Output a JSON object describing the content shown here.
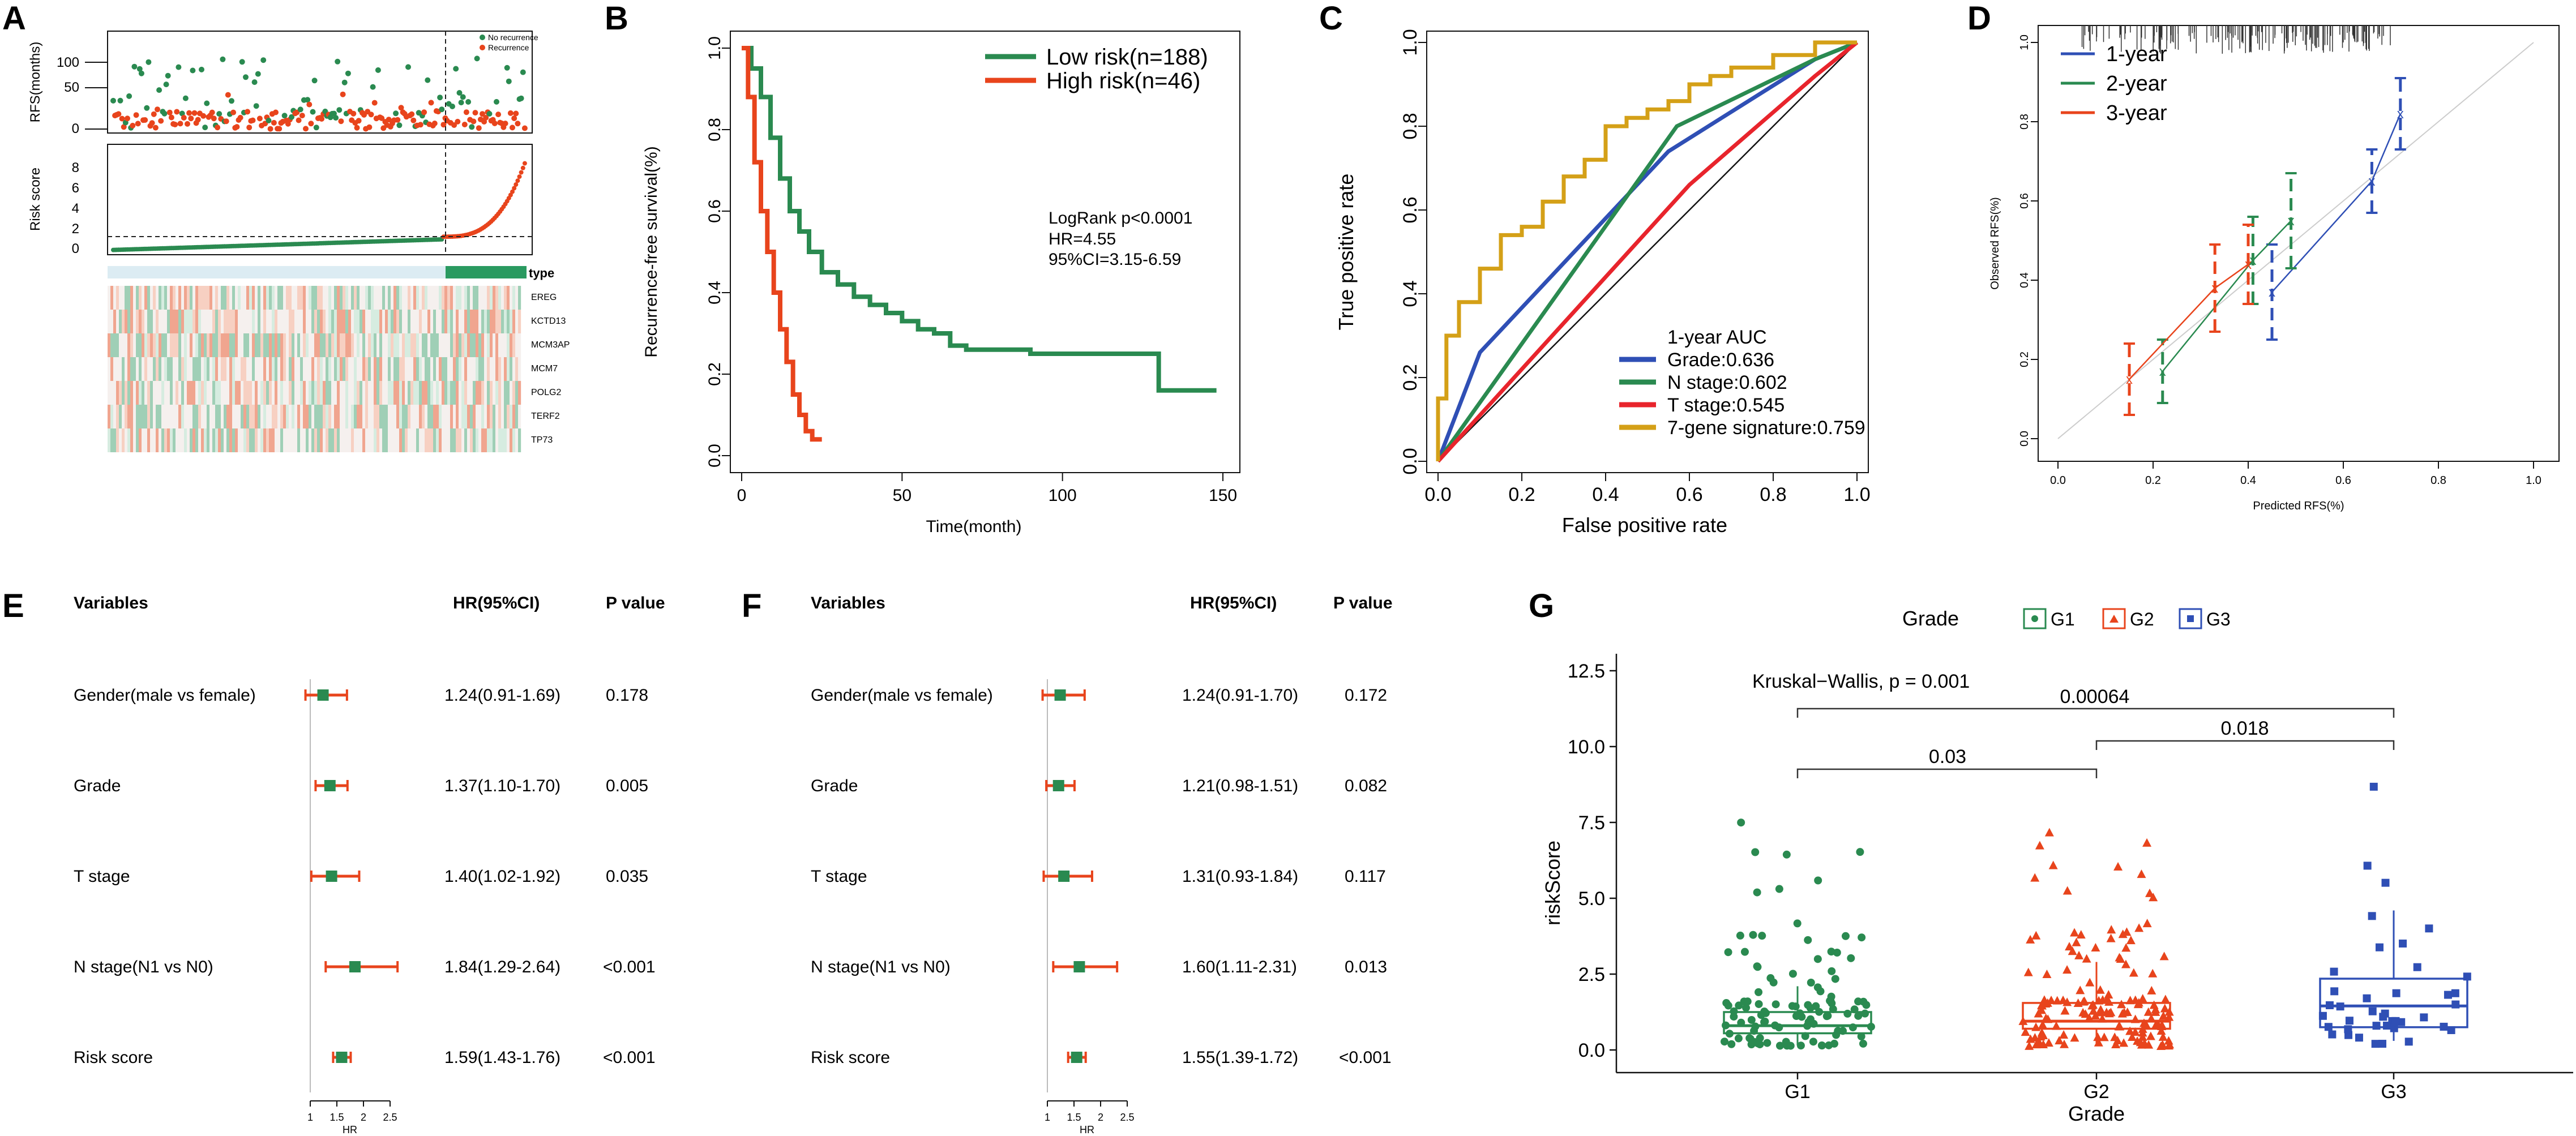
{
  "colors": {
    "green": "#2a8a50",
    "red": "#e8441c",
    "blue": "#2f4fb5",
    "orange": "#d4a017",
    "grey": "#999999",
    "black": "#111111"
  },
  "panels": {
    "A": "A",
    "B": "B",
    "C": "C",
    "D": "D",
    "E": "E",
    "F": "F",
    "G": "G"
  },
  "panelA": {
    "legend": [
      "No recurrence",
      "Recurrence"
    ],
    "top_ylabel": "RFS(months)",
    "top_ticks": [
      0,
      50,
      100
    ],
    "mid_ylabel": "Risk score",
    "mid_ticks": [
      0,
      2,
      4,
      6,
      8
    ],
    "heat_legend": "type",
    "genes": [
      "EREG",
      "KCTD13",
      "MCM3AP",
      "MCM7",
      "POLG2",
      "TERF2",
      "TP73"
    ]
  },
  "chart_data": [
    {
      "panel": "B",
      "type": "line",
      "title": "",
      "xlabel": "Time(month)",
      "ylabel": "Recurrence-free survival(%)",
      "xlim": [
        0,
        150
      ],
      "ylim": [
        0,
        1
      ],
      "x_ticks": [
        0,
        50,
        100,
        150
      ],
      "y_ticks": [
        0.0,
        0.2,
        0.4,
        0.6,
        0.8,
        1.0
      ],
      "legend": [
        "Low risk(n=188)",
        "High risk(n=46)"
      ],
      "annotation": [
        "LogRank p<0.0001",
        "HR=4.55",
        "95%CI=3.15-6.59"
      ],
      "series": [
        {
          "name": "Low risk(n=188)",
          "x": [
            0,
            3,
            6,
            9,
            12,
            15,
            18,
            21,
            25,
            30,
            35,
            40,
            45,
            50,
            55,
            60,
            65,
            70,
            80,
            90,
            100,
            110,
            120,
            130,
            130,
            148
          ],
          "y": [
            1.0,
            0.95,
            0.88,
            0.78,
            0.68,
            0.6,
            0.55,
            0.5,
            0.45,
            0.42,
            0.39,
            0.37,
            0.35,
            0.33,
            0.31,
            0.3,
            0.27,
            0.26,
            0.26,
            0.25,
            0.25,
            0.25,
            0.25,
            0.25,
            0.16,
            0.16
          ]
        },
        {
          "name": "High risk(n=46)",
          "x": [
            0,
            2,
            4,
            6,
            8,
            10,
            12,
            14,
            16,
            18,
            20,
            22,
            25
          ],
          "y": [
            1.0,
            0.88,
            0.72,
            0.6,
            0.5,
            0.4,
            0.31,
            0.23,
            0.15,
            0.1,
            0.06,
            0.04,
            0.04
          ]
        }
      ]
    },
    {
      "panel": "C",
      "type": "line",
      "xlabel": "False positive rate",
      "ylabel": "True positive rate",
      "xlim": [
        0,
        1
      ],
      "ylim": [
        0,
        1
      ],
      "ticks": [
        0.0,
        0.2,
        0.4,
        0.6,
        0.8,
        1.0
      ],
      "legend_title": "1-year AUC",
      "series": [
        {
          "name": "Grade:0.636",
          "x": [
            0,
            0.1,
            0.55,
            0.9,
            1
          ],
          "y": [
            0,
            0.26,
            0.74,
            0.96,
            1
          ]
        },
        {
          "name": "N stage:0.602",
          "x": [
            0,
            0.57,
            0.9,
            1
          ],
          "y": [
            0,
            0.8,
            0.96,
            1
          ]
        },
        {
          "name": "T stage:0.545",
          "x": [
            0,
            0.6,
            0.9,
            1
          ],
          "y": [
            0,
            0.66,
            0.92,
            1
          ]
        },
        {
          "name": "7-gene signature:0.759",
          "x": [
            0,
            0.02,
            0.05,
            0.1,
            0.15,
            0.2,
            0.25,
            0.3,
            0.35,
            0.4,
            0.45,
            0.5,
            0.55,
            0.6,
            0.65,
            0.7,
            0.8,
            0.9,
            1
          ],
          "y": [
            0,
            0.15,
            0.3,
            0.38,
            0.46,
            0.54,
            0.56,
            0.62,
            0.68,
            0.72,
            0.8,
            0.82,
            0.84,
            0.86,
            0.9,
            0.92,
            0.94,
            0.97,
            1
          ]
        }
      ]
    },
    {
      "panel": "D",
      "type": "line",
      "xlabel": "Predicted RFS(%)",
      "ylabel": "Observed RFS(%)",
      "xlim": [
        0,
        1
      ],
      "ylim": [
        0,
        1
      ],
      "ticks": [
        0.0,
        0.2,
        0.4,
        0.6,
        0.8,
        1.0
      ],
      "legend": [
        "1-year",
        "2-year",
        "3-year"
      ],
      "series": [
        {
          "name": "1-year",
          "x": [
            0.45,
            0.66,
            0.72
          ],
          "y": [
            0.37,
            0.65,
            0.82
          ]
        },
        {
          "name": "2-year",
          "x": [
            0.22,
            0.41,
            0.49
          ],
          "y": [
            0.17,
            0.45,
            0.55
          ]
        },
        {
          "name": "3-year",
          "x": [
            0.15,
            0.33,
            0.4
          ],
          "y": [
            0.15,
            0.38,
            0.44
          ]
        }
      ]
    },
    {
      "panel": "G",
      "type": "box",
      "xlabel": "Grade",
      "ylabel": "riskScore",
      "legend_title": "Grade",
      "categories": [
        "G1",
        "G2",
        "G3"
      ],
      "ylim": [
        0,
        12.5
      ],
      "y_ticks": [
        "0.0",
        "2.5",
        "5.0",
        "7.5",
        "10.0",
        "12.5"
      ],
      "boxes": [
        {
          "name": "G1",
          "q1": 0.55,
          "median": 0.8,
          "q3": 1.25,
          "whisker_low": 0.15,
          "whisker_high": 2.1
        },
        {
          "name": "G2",
          "q1": 0.7,
          "median": 0.95,
          "q3": 1.55,
          "whisker_low": 0.2,
          "whisker_high": 2.9
        },
        {
          "name": "G3",
          "q1": 0.75,
          "median": 1.45,
          "q3": 2.35,
          "whisker_low": 0.3,
          "whisker_high": 4.6
        }
      ],
      "annotations": [
        "Kruskal−Wallis, p = 0.001",
        "0.00064",
        "0.018",
        "0.03"
      ]
    }
  ],
  "forestE": {
    "headers": {
      "variables": "Variables",
      "hr": "HR(95%CI)",
      "p": "P value"
    },
    "axis_ticks": [
      "1",
      "1.5",
      "2",
      "2.5"
    ],
    "axis_label": "HR",
    "rows": [
      {
        "label": "Gender(male  vs  female)",
        "hr_text": "1.24(0.91-1.69)",
        "p": "0.178",
        "hr": 1.24,
        "lo": 0.91,
        "hi": 1.69
      },
      {
        "label": "Grade",
        "hr_text": "1.37(1.10-1.70)",
        "p": "0.005",
        "hr": 1.37,
        "lo": 1.1,
        "hi": 1.7
      },
      {
        "label": "T  stage",
        "hr_text": "1.40(1.02-1.92)",
        "p": "0.035",
        "hr": 1.4,
        "lo": 1.02,
        "hi": 1.92
      },
      {
        "label": "N  stage(N1  vs  N0)",
        "hr_text": "1.84(1.29-2.64)",
        "p": "<0.001",
        "hr": 1.84,
        "lo": 1.29,
        "hi": 2.64
      },
      {
        "label": "Risk  score",
        "hr_text": "1.59(1.43-1.76)",
        "p": "<0.001",
        "hr": 1.59,
        "lo": 1.43,
        "hi": 1.76
      }
    ]
  },
  "forestF": {
    "headers": {
      "variables": "Variables",
      "hr": "HR(95%CI)",
      "p": "P value"
    },
    "axis_ticks": [
      "1",
      "1.5",
      "2",
      "2.5"
    ],
    "axis_label": "HR",
    "rows": [
      {
        "label": "Gender(male  vs  female)",
        "hr_text": "1.24(0.91-1.70)",
        "p": "0.172",
        "hr": 1.24,
        "lo": 0.91,
        "hi": 1.7
      },
      {
        "label": "Grade",
        "hr_text": "1.21(0.98-1.51)",
        "p": "0.082",
        "hr": 1.21,
        "lo": 0.98,
        "hi": 1.51
      },
      {
        "label": "T  stage",
        "hr_text": "1.31(0.93-1.84)",
        "p": "0.117",
        "hr": 1.31,
        "lo": 0.93,
        "hi": 1.84
      },
      {
        "label": "N  stage(N1  vs  N0)",
        "hr_text": "1.60(1.11-2.31)",
        "p": "0.013",
        "hr": 1.6,
        "lo": 1.11,
        "hi": 2.31
      },
      {
        "label": "Risk  score",
        "hr_text": "1.55(1.39-1.72)",
        "p": "<0.001",
        "hr": 1.55,
        "lo": 1.39,
        "hi": 1.72
      }
    ]
  }
}
